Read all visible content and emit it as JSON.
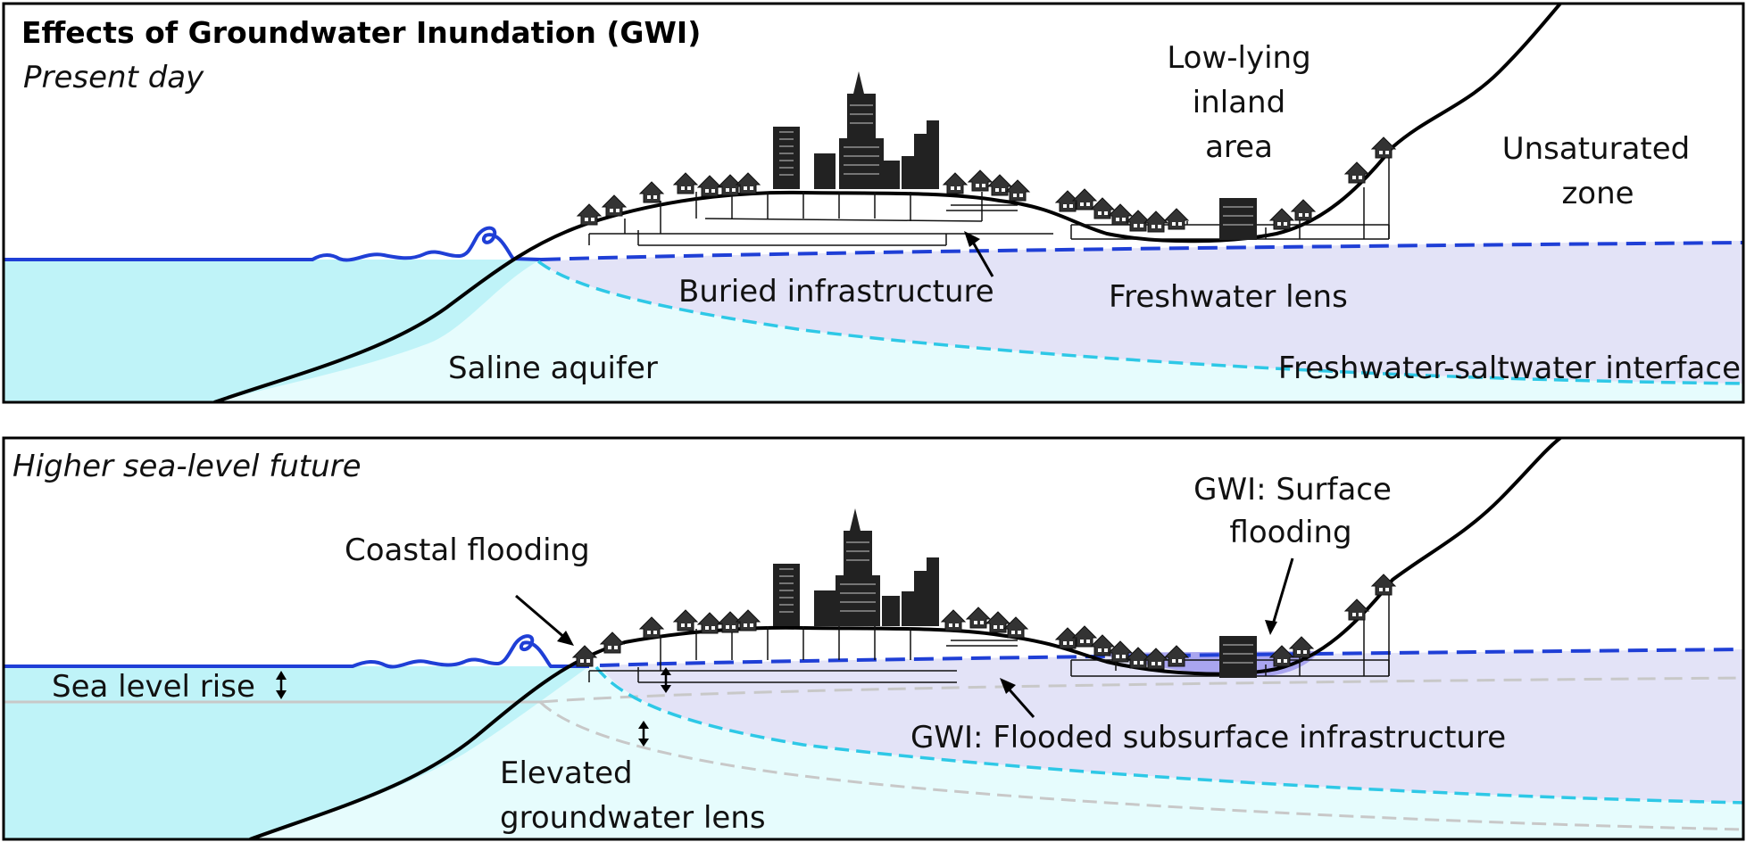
{
  "panels": {
    "top": {
      "title": "Effects of Groundwater Inundation (GWI)",
      "subtitle": "Present day",
      "labels": {
        "low_lying_line1": "Low-lying",
        "low_lying_line2": "inland",
        "low_lying_line3": "area",
        "unsaturated_line1": "Unsaturated",
        "unsaturated_line2": "zone",
        "buried_infrastructure": "Buried infrastructure",
        "freshwater_lens": "Freshwater lens",
        "saline_aquifer": "Saline aquifer",
        "interface": "Freshwater-saltwater interface"
      }
    },
    "bottom": {
      "subtitle": "Higher sea-level future",
      "labels": {
        "coastal_flooding": "Coastal flooding",
        "surface_flooding_line1": "GWI: Surface",
        "surface_flooding_line2": "flooding",
        "sea_level_rise": "Sea level rise",
        "elevated_line1": "Elevated",
        "elevated_line2": "groundwater lens",
        "flooded_subsurface": "GWI: Flooded subsurface infrastructure"
      }
    }
  },
  "colors": {
    "sea": "#bff3f8",
    "saline_aquifer": "#e6fcfd",
    "freshwater_lens": "#e3e3f7",
    "water_line": "#1f3fd6",
    "interface_line": "#2ec8e6",
    "old_level_line": "#c8c8c8",
    "city": "#222222"
  }
}
